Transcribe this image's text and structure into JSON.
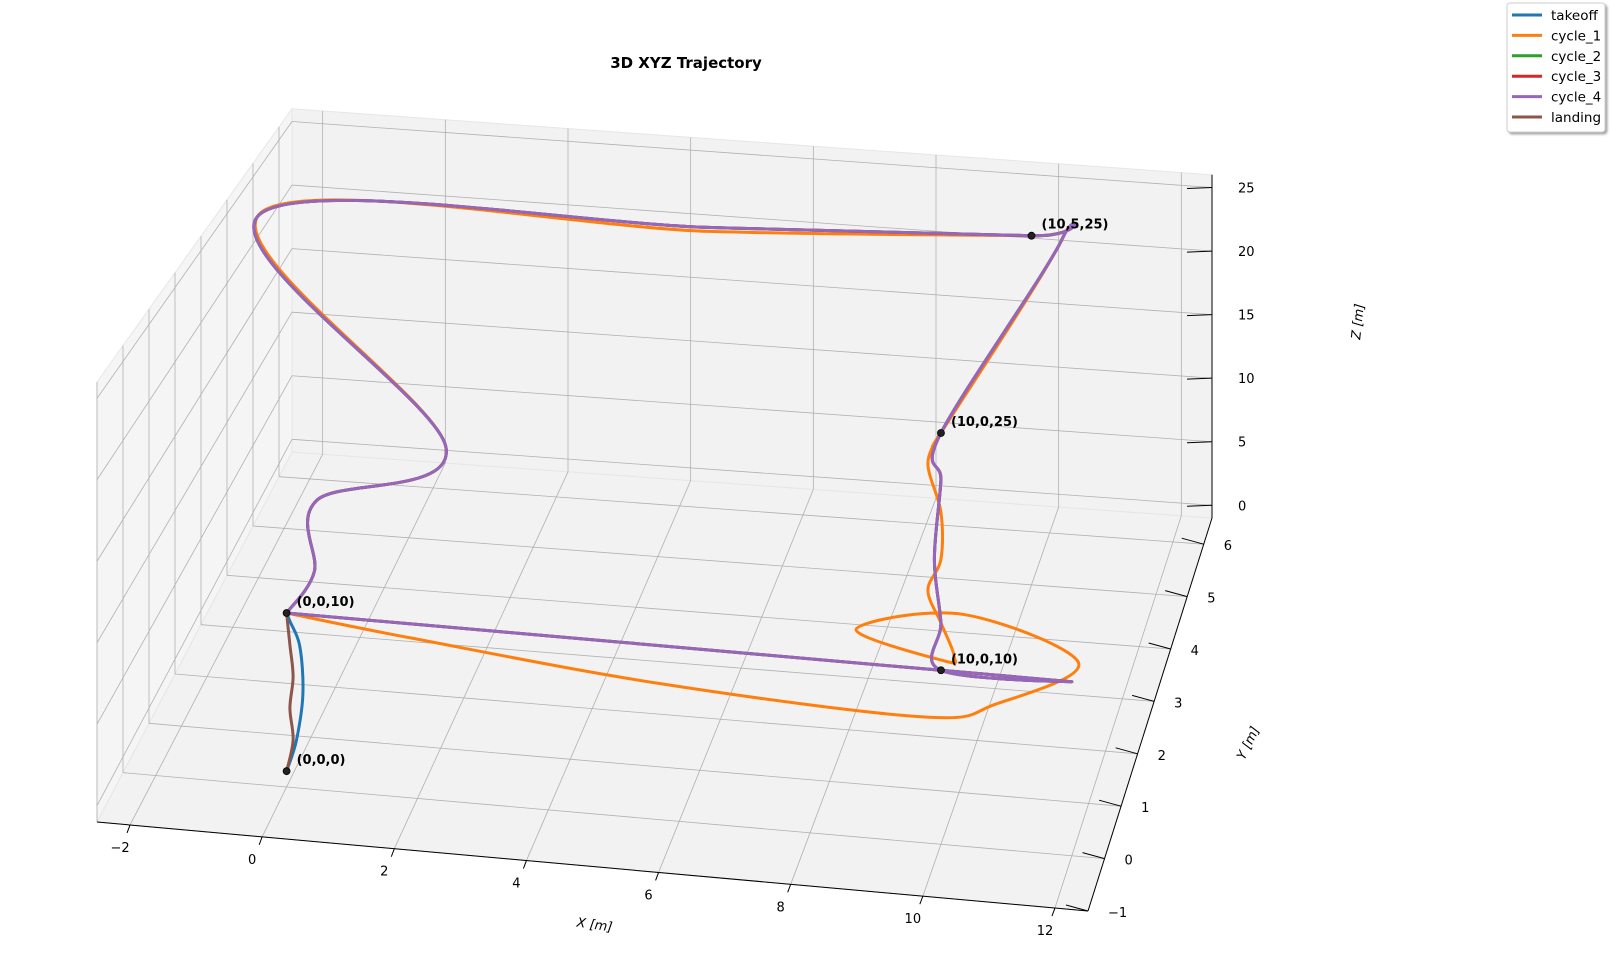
{
  "chart_data": {
    "type": "line",
    "title": "3D XYZ Trajectory",
    "xlabel": "X [m]",
    "ylabel": "Y [m]",
    "zlabel": "Z [m]",
    "xlim": [
      -2.5,
      12.5
    ],
    "ylim": [
      -1,
      6.5
    ],
    "zlim": [
      -1,
      26
    ],
    "xticks": [
      -2,
      0,
      2,
      4,
      6,
      8,
      10,
      12
    ],
    "yticks": [
      -1,
      0,
      1,
      2,
      3,
      4,
      5,
      6
    ],
    "zticks": [
      0,
      5,
      10,
      15,
      20,
      25
    ],
    "tick_labels": {
      "x": [
        "−2",
        "0",
        "2",
        "4",
        "6",
        "8",
        "10",
        "12"
      ],
      "y": [
        "−1",
        "0",
        "1",
        "2",
        "3",
        "4",
        "5",
        "6"
      ],
      "z": [
        "0",
        "5",
        "10",
        "15",
        "20",
        "25"
      ]
    },
    "grid": true,
    "legend_position": "top-right",
    "series": [
      {
        "name": "takeoff",
        "color": "#1f77b4",
        "x": [
          0,
          0.15,
          0.25,
          0.2,
          0.05,
          0
        ],
        "y": [
          0,
          0,
          0,
          0,
          0,
          0
        ],
        "z": [
          0,
          2,
          5,
          8,
          9.5,
          10
        ]
      },
      {
        "name": "cycle_1",
        "color": "#ff7f0e",
        "x": [
          0,
          2,
          6,
          10,
          11,
          12,
          10,
          8.5,
          10,
          10.2,
          10,
          9.8,
          10,
          10,
          9.8,
          10,
          10,
          10.5,
          10,
          5,
          -2,
          1.5,
          -0.1,
          0.2,
          0
        ],
        "y": [
          0,
          -0.3,
          -0.8,
          -1.0,
          -0.6,
          0.4,
          1.2,
          0.7,
          0.2,
          0,
          0,
          0,
          0,
          0,
          0,
          0,
          0,
          5,
          5,
          4.5,
          4.1,
          2.6,
          1.5,
          0.6,
          0
        ],
        "z": [
          10,
          10,
          10,
          10,
          10,
          10,
          10,
          10,
          10,
          11,
          13,
          15,
          17,
          20,
          23,
          25,
          25,
          25,
          25,
          25,
          25,
          14,
          13,
          11,
          10
        ]
      },
      {
        "name": "cycle_2",
        "color": "#2ca02c",
        "x": [
          0,
          5,
          10,
          12,
          10,
          10,
          9.9,
          10,
          10,
          10.5,
          10,
          5,
          -2,
          1.5,
          -0.1,
          0.2,
          0
        ],
        "y": [
          0,
          0,
          0,
          0,
          0,
          0,
          0,
          0,
          0,
          5,
          5,
          4.6,
          4.05,
          2.6,
          1.5,
          0.6,
          0
        ],
        "z": [
          10,
          10,
          10,
          10,
          10,
          13,
          17,
          22,
          25,
          25,
          25,
          25,
          25,
          14,
          13,
          11,
          10
        ]
      },
      {
        "name": "cycle_3",
        "color": "#d62728",
        "x": [
          0,
          5,
          10,
          12,
          10,
          10,
          9.9,
          10,
          10,
          10.5,
          10,
          5,
          -2,
          1.5,
          -0.1,
          0.2,
          0
        ],
        "y": [
          0,
          0,
          0,
          0,
          0,
          0,
          0,
          0,
          0,
          5,
          5,
          4.6,
          4.05,
          2.6,
          1.5,
          0.6,
          0
        ],
        "z": [
          10,
          10,
          10,
          10,
          10,
          13,
          17,
          22,
          25,
          25,
          25,
          25,
          25,
          14,
          13,
          11,
          10
        ]
      },
      {
        "name": "cycle_4",
        "color": "#9467bd",
        "x": [
          0,
          5,
          10,
          12,
          10,
          10,
          9.9,
          10,
          10,
          10.5,
          10,
          5,
          -2,
          1.5,
          -0.1,
          0.2,
          0
        ],
        "y": [
          0,
          0,
          0,
          0,
          0,
          0,
          0,
          0,
          0,
          5,
          5,
          4.6,
          4.05,
          2.6,
          1.5,
          0.6,
          0
        ],
        "z": [
          10,
          10,
          10,
          10,
          10,
          13,
          17,
          22,
          25,
          25,
          25,
          25,
          25,
          14,
          13,
          11,
          10
        ]
      },
      {
        "name": "landing",
        "color": "#8c564b",
        "x": [
          0,
          0.05,
          0.1,
          0.05,
          0.1,
          0
        ],
        "y": [
          0,
          0,
          0,
          0,
          0,
          0
        ],
        "z": [
          10,
          8,
          6,
          4,
          2,
          0
        ]
      }
    ],
    "annotations": [
      {
        "text": "(0,0,0)",
        "x": 0,
        "y": 0,
        "z": 0
      },
      {
        "text": "(0,0,10)",
        "x": 0,
        "y": 0,
        "z": 10
      },
      {
        "text": "(10,0,10)",
        "x": 10,
        "y": 0,
        "z": 10
      },
      {
        "text": "(10,0,25)",
        "x": 10,
        "y": 0,
        "z": 25
      },
      {
        "text": "(10,5,25)",
        "x": 10,
        "y": 5,
        "z": 25
      }
    ]
  }
}
